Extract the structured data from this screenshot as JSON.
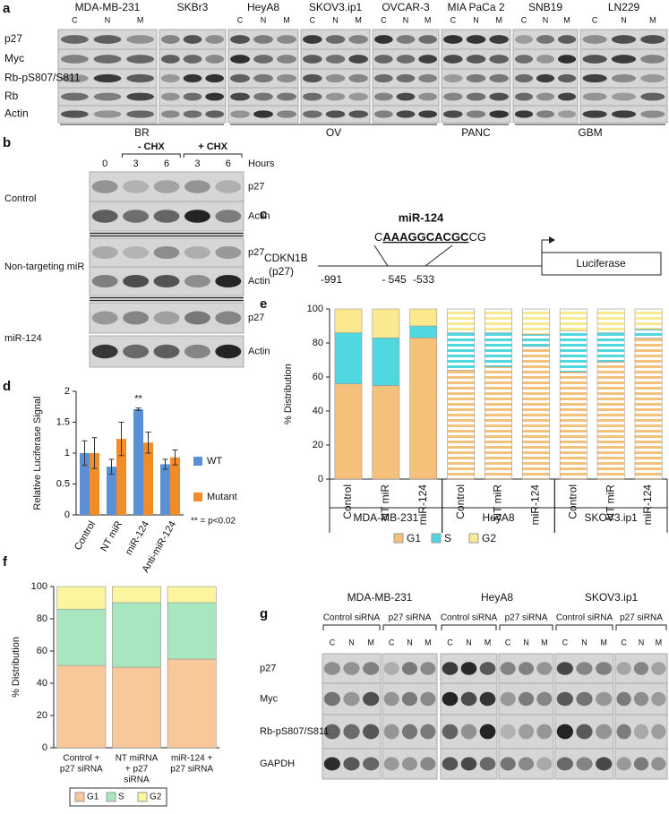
{
  "figure": {
    "panel_a": {
      "label": "a",
      "cell_lines": [
        "MDA-MB-231",
        "SKBr3",
        "HeyA8",
        "SKOV3.ip1",
        "OVCAR-3",
        "MIA PaCa 2",
        "SNB19",
        "LN229"
      ],
      "lanes": [
        "C",
        "N",
        "M"
      ],
      "rows": [
        "p27",
        "Myc",
        "Rb-pS807/S811",
        "Rb",
        "Actin"
      ],
      "groups": [
        "BR",
        "OV",
        "PANC",
        "GBM"
      ]
    },
    "panel_b": {
      "label": "b",
      "timepoints": [
        "0",
        "3",
        "6",
        "3",
        "6"
      ],
      "treatments": [
        "- CHX",
        "+ CHX"
      ],
      "time_unit": "Hours",
      "conditions": [
        "Control",
        "Non-targeting miR",
        "miR-124"
      ],
      "proteins": [
        "p27",
        "Actin"
      ]
    },
    "panel_c": {
      "label": "c",
      "mirna": "miR-124",
      "seq_prefix": "C",
      "seq_site": "AAAGGCACGC",
      "seq_suffix": "CG",
      "gene": "CDKN1B",
      "gene_alias": "(p27)",
      "reporter": "Luciferase",
      "positions": [
        "-991",
        "- 545",
        "-533"
      ]
    },
    "panel_g": {
      "label": "g",
      "cell_lines": [
        "MDA-MB-231",
        "HeyA8",
        "SKOV3.ip1"
      ],
      "sirna": [
        "Control  siRNA",
        "p27 siRNA"
      ],
      "lanes": [
        "C",
        "N",
        "M"
      ],
      "rows": [
        "p27",
        "Myc",
        "Rb-pS807/S811",
        "GAPDH"
      ]
    }
  },
  "chart_data": [
    {
      "type": "bar",
      "label": "d",
      "ylabel": "Relative Luciferase Signal",
      "categories": [
        "Control",
        "NT miR",
        "miR-124",
        "Anti-miR-124"
      ],
      "series": [
        {
          "name": "WT",
          "color": "#5b8fd6",
          "values": [
            1.0,
            0.78,
            1.71,
            0.82
          ],
          "errors": [
            0.2,
            0.12,
            0.02,
            0.08
          ]
        },
        {
          "name": "Mutant",
          "color": "#f28c28",
          "values": [
            1.0,
            1.23,
            1.17,
            0.93
          ],
          "errors": [
            0.25,
            0.27,
            0.17,
            0.12
          ]
        }
      ],
      "annotation": "**",
      "note": "** = p<0.02",
      "ylim": [
        0,
        2
      ],
      "yticks": [
        0,
        0.5,
        1,
        1.5,
        2
      ],
      "grid": false
    },
    {
      "type": "stacked-bar",
      "label": "e",
      "ylabel": "% Distribution",
      "groups": [
        {
          "name": "MDA-MB-231",
          "hatched": false,
          "categories": [
            "Control",
            "NT miR",
            "miR-124"
          ]
        },
        {
          "name": "HeyA8",
          "hatched": true,
          "categories": [
            "Control",
            "NT miR",
            "miR-124"
          ]
        },
        {
          "name": "SKOV3.ip1",
          "hatched": true,
          "categories": [
            "Control",
            "NT miR",
            "miR-124"
          ]
        }
      ],
      "series": [
        {
          "name": "G1",
          "color": "#f5c07a",
          "values": [
            56,
            55,
            83,
            64,
            66,
            78,
            63,
            69,
            83
          ]
        },
        {
          "name": "S",
          "color": "#4fd8e0",
          "values": [
            30,
            28,
            7,
            22,
            20,
            7,
            24,
            17,
            5
          ]
        },
        {
          "name": "G2",
          "color": "#fbe98f",
          "values": [
            14,
            17,
            10,
            14,
            14,
            15,
            13,
            14,
            12
          ]
        }
      ],
      "ylim": [
        0,
        100
      ],
      "yticks": [
        0,
        20,
        40,
        60,
        80,
        100
      ],
      "grid": false
    },
    {
      "type": "stacked-bar",
      "label": "f",
      "ylabel": "% Distribution",
      "categories": [
        [
          "Control +",
          "p27 siRNA"
        ],
        [
          "NT miRNA",
          "+ p27",
          "siRNA"
        ],
        [
          "miR-124 +",
          "p27 siRNA"
        ]
      ],
      "series": [
        {
          "name": "G1",
          "color": "#f8c89a",
          "values": [
            51,
            50,
            55
          ]
        },
        {
          "name": "S",
          "color": "#a8e6c0",
          "values": [
            35,
            40,
            35
          ]
        },
        {
          "name": "G2",
          "color": "#fbf5a0",
          "values": [
            14,
            10,
            10
          ]
        }
      ],
      "ylim": [
        0,
        100
      ],
      "yticks": [
        0,
        20,
        40,
        60,
        80,
        100
      ],
      "grid": false
    }
  ]
}
